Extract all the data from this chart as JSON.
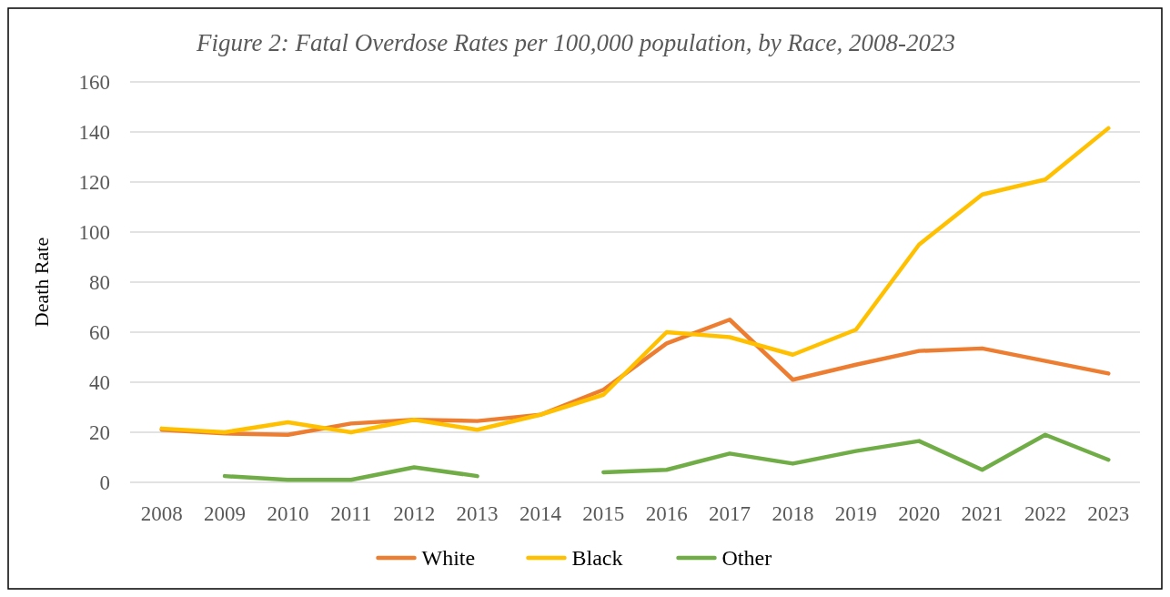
{
  "chart_data": {
    "type": "line",
    "title": "Figure 2: Fatal Overdose Rates per 100,000 population, by Race, 2008-2023",
    "ylabel": "Death Rate",
    "categories": [
      "2008",
      "2009",
      "2010",
      "2011",
      "2012",
      "2013",
      "2014",
      "2015",
      "2016",
      "2017",
      "2018",
      "2019",
      "2020",
      "2021",
      "2022",
      "2023"
    ],
    "series": [
      {
        "name": "White",
        "color": "#ed7d31",
        "values": [
          21,
          19.5,
          19,
          23.5,
          25,
          24.5,
          27,
          37,
          55.5,
          65,
          41,
          47,
          52.5,
          53.5,
          48.5,
          43.5
        ]
      },
      {
        "name": "Black",
        "color": "#ffc000",
        "values": [
          21.5,
          20,
          24,
          20,
          25,
          21,
          27,
          35,
          60,
          58,
          51,
          61,
          95,
          115,
          121,
          141.5
        ]
      },
      {
        "name": "Other",
        "color": "#70ad47",
        "values": [
          null,
          2.5,
          1,
          1,
          6,
          2.5,
          null,
          4,
          5,
          11.5,
          7.5,
          12.5,
          16.5,
          5,
          19,
          9
        ]
      }
    ],
    "ylim": [
      0,
      160
    ],
    "yticks": [
      0,
      20,
      40,
      60,
      80,
      100,
      120,
      140,
      160
    ],
    "grid": "y",
    "legend": "bottom",
    "marker": "none",
    "line_style": "solid"
  }
}
